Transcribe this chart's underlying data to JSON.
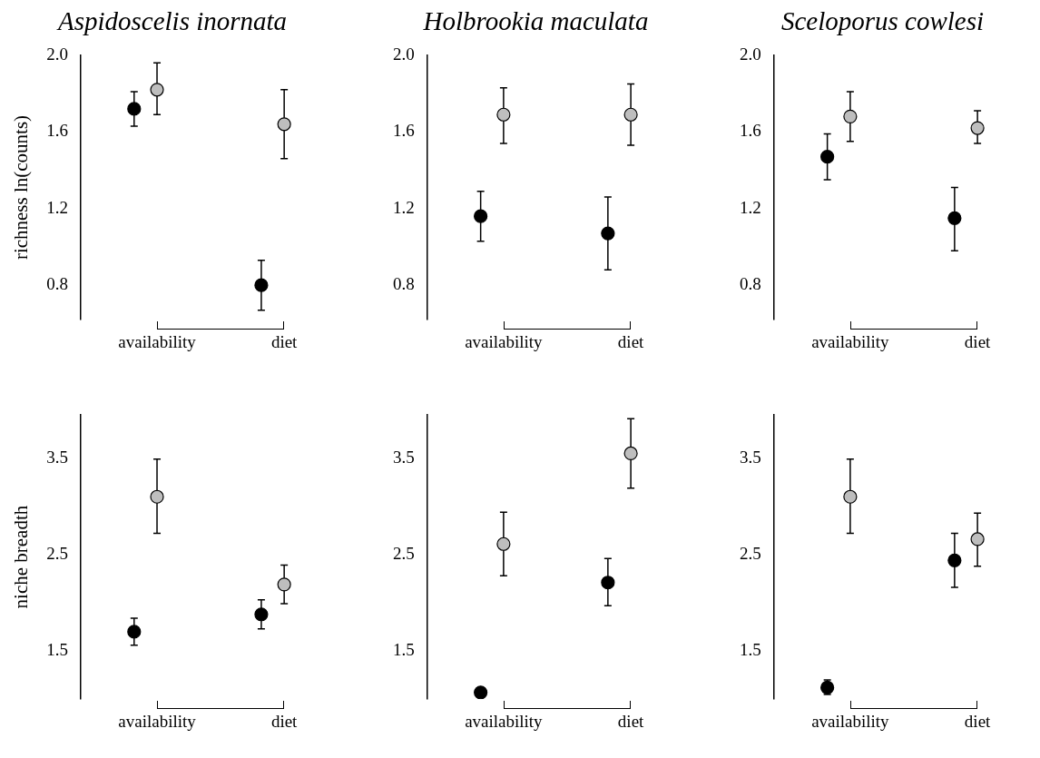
{
  "chart_data": [
    {
      "type": "scatter",
      "title": "Aspidoscelis inornata",
      "ylabel": "richness ln(counts)",
      "categories": [
        "availability",
        "diet"
      ],
      "marker": "circle",
      "ylim": [
        0.62,
        2.0
      ],
      "yticks": [
        {
          "value": 0.8,
          "label": "0.8"
        },
        {
          "value": 1.2,
          "label": "1.2"
        },
        {
          "value": 1.6,
          "label": "1.6"
        },
        {
          "value": 2.0,
          "label": "2.0"
        }
      ],
      "series": [
        {
          "color": "#000000",
          "values": [
            1.72,
            0.8
          ],
          "errors": [
            [
              1.63,
              1.81
            ],
            [
              0.67,
              0.93
            ]
          ]
        },
        {
          "color": "#bebebe",
          "values": [
            1.82,
            1.64
          ],
          "errors": [
            [
              1.69,
              1.96
            ],
            [
              1.46,
              1.82
            ]
          ]
        }
      ]
    },
    {
      "type": "scatter",
      "title": "Holbrookia maculata",
      "categories": [
        "availability",
        "diet"
      ],
      "marker": "circle",
      "ylim": [
        0.62,
        2.0
      ],
      "yticks": [
        {
          "value": 0.8,
          "label": "0.8"
        },
        {
          "value": 1.2,
          "label": "1.2"
        },
        {
          "value": 1.6,
          "label": "1.6"
        },
        {
          "value": 2.0,
          "label": "2.0"
        }
      ],
      "series": [
        {
          "color": "#000000",
          "values": [
            1.16,
            1.07
          ],
          "errors": [
            [
              1.03,
              1.29
            ],
            [
              0.88,
              1.26
            ]
          ]
        },
        {
          "color": "#bebebe",
          "values": [
            1.69,
            1.69
          ],
          "errors": [
            [
              1.54,
              1.83
            ],
            [
              1.53,
              1.85
            ]
          ]
        }
      ]
    },
    {
      "type": "scatter",
      "title": "Sceloporus cowlesi",
      "categories": [
        "availability",
        "diet"
      ],
      "marker": "circle",
      "ylim": [
        0.62,
        2.0
      ],
      "yticks": [
        {
          "value": 0.8,
          "label": "0.8"
        },
        {
          "value": 1.2,
          "label": "1.2"
        },
        {
          "value": 1.6,
          "label": "1.6"
        },
        {
          "value": 2.0,
          "label": "2.0"
        }
      ],
      "series": [
        {
          "color": "#000000",
          "values": [
            1.47,
            1.15
          ],
          "errors": [
            [
              1.35,
              1.59
            ],
            [
              0.98,
              1.31
            ]
          ]
        },
        {
          "color": "#bebebe",
          "values": [
            1.68,
            1.62
          ],
          "errors": [
            [
              1.55,
              1.81
            ],
            [
              1.54,
              1.71
            ]
          ]
        }
      ]
    },
    {
      "type": "scatter",
      "ylabel": "niche breadth",
      "categories": [
        "availability",
        "diet"
      ],
      "marker": "circle",
      "ylim": [
        1.0,
        3.95
      ],
      "yticks": [
        1.5,
        2.5,
        3.5
      ],
      "series": [
        {
          "color": "#000000",
          "values": [
            1.7,
            1.88
          ],
          "errors": [
            [
              1.56,
              1.84
            ],
            [
              1.73,
              2.03
            ]
          ]
        },
        {
          "color": "#bebebe",
          "values": [
            3.1,
            2.19
          ],
          "errors": [
            [
              2.72,
              3.49
            ],
            [
              1.99,
              2.39
            ]
          ]
        }
      ]
    },
    {
      "type": "scatter",
      "categories": [
        "availability",
        "diet"
      ],
      "marker": "circle",
      "ylim": [
        1.0,
        3.95
      ],
      "yticks": [
        1.5,
        2.5,
        3.5
      ],
      "series": [
        {
          "color": "#000000",
          "values": [
            1.07,
            2.21
          ],
          "errors": [
            null,
            [
              1.97,
              2.46
            ]
          ]
        },
        {
          "color": "#bebebe",
          "values": [
            2.61,
            3.55
          ],
          "errors": [
            [
              2.28,
              2.94
            ],
            [
              3.19,
              3.91
            ]
          ]
        }
      ]
    },
    {
      "type": "scatter",
      "categories": [
        "availability",
        "diet"
      ],
      "marker": "circle",
      "ylim": [
        1.0,
        3.95
      ],
      "yticks": [
        1.5,
        2.5,
        3.5
      ],
      "series": [
        {
          "color": "#000000",
          "values": [
            1.12,
            2.44
          ],
          "errors": [
            [
              1.05,
              1.2
            ],
            [
              2.16,
              2.72
            ]
          ]
        },
        {
          "color": "#bebebe",
          "values": [
            3.1,
            2.66
          ],
          "errors": [
            [
              2.72,
              3.49
            ],
            [
              2.38,
              2.93
            ]
          ]
        }
      ]
    }
  ]
}
